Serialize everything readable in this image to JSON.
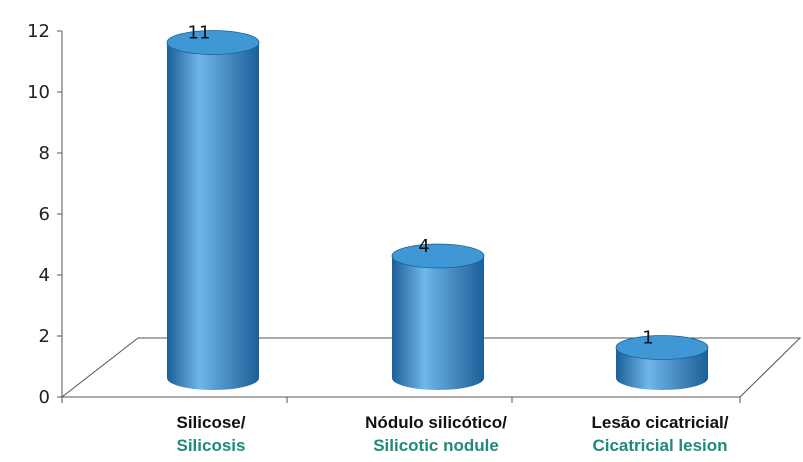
{
  "chart_data": {
    "type": "bar",
    "style": "3d-cylinder",
    "categories": [
      {
        "label_pt": "Silicose/",
        "label_en": "Silicosis"
      },
      {
        "label_pt": "Nódulo silicótico/",
        "label_en": "Silicotic nodule"
      },
      {
        "label_pt": "Lesão cicatricial/",
        "label_en": "Cicatricial lesion"
      }
    ],
    "values": [
      11,
      4,
      1
    ],
    "data_labels": [
      "11",
      "4",
      "1"
    ],
    "title": "",
    "xlabel": "",
    "ylabel": "",
    "ylim": [
      0,
      12
    ],
    "yticks": [
      0,
      2,
      4,
      6,
      8,
      10,
      12
    ],
    "grid": false,
    "legend": "none",
    "colors": {
      "bar": "#2f86c8",
      "bar_dark": "#1a5f97",
      "bar_light": "#6fb6ea",
      "bar_top": "#3f97d6",
      "english_label": "#1f8a7a",
      "axis": "#555555"
    }
  }
}
